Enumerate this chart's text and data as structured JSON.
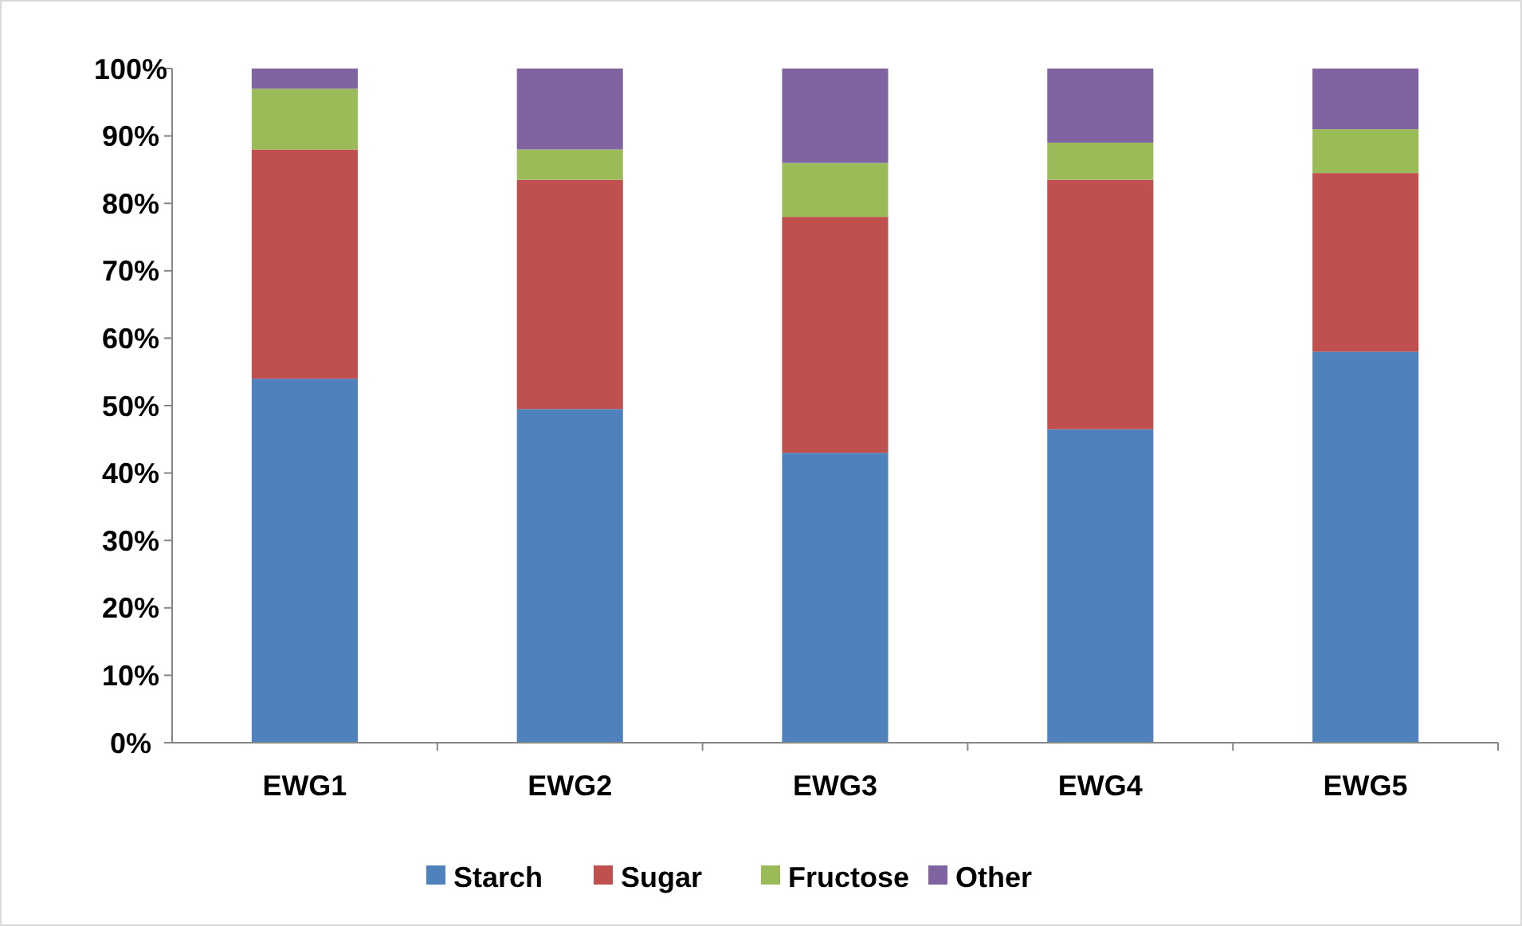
{
  "chart_data": {
    "type": "bar",
    "stacked": true,
    "categories": [
      "EWG1",
      "EWG2",
      "EWG3",
      "EWG4",
      "EWG5"
    ],
    "series": [
      {
        "name": "Starch",
        "color": "#4f81bd",
        "values": [
          54,
          49.5,
          43,
          46.5,
          58
        ]
      },
      {
        "name": "Sugar",
        "color": "#c0504d",
        "values": [
          34,
          34,
          35,
          37,
          26.5
        ]
      },
      {
        "name": "Fructose",
        "color": "#9bbb59",
        "values": [
          9,
          4.5,
          8,
          5.5,
          6.5
        ]
      },
      {
        "name": "Other",
        "color": "#8064a2",
        "values": [
          3,
          12,
          14,
          11,
          9
        ]
      }
    ],
    "ylim": [
      0,
      100
    ],
    "yticks": [
      {
        "value": 0,
        "label": "0%"
      },
      {
        "value": 10,
        "label": "10%"
      },
      {
        "value": 20,
        "label": "20%"
      },
      {
        "value": 30,
        "label": "30%"
      },
      {
        "value": 40,
        "label": "40%"
      },
      {
        "value": 50,
        "label": "50%"
      },
      {
        "value": 60,
        "label": "60%"
      },
      {
        "value": 70,
        "label": "70%"
      },
      {
        "value": 80,
        "label": "80%"
      },
      {
        "value": 90,
        "label": "90%"
      },
      {
        "value": 100,
        "label": "100%"
      }
    ],
    "grid": false,
    "legend": "bottom"
  }
}
